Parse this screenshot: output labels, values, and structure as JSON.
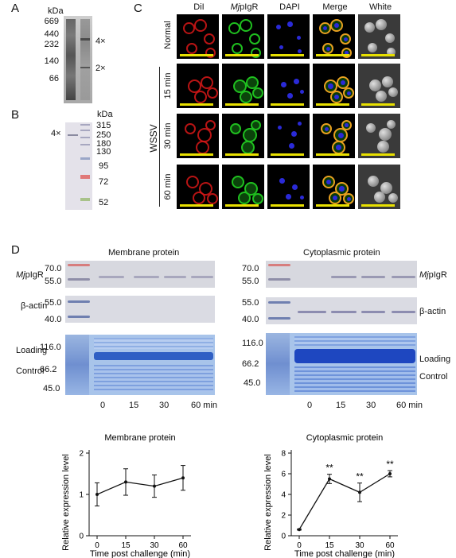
{
  "panelA": {
    "label": "A",
    "unit": "kDa",
    "markers": [
      "669",
      "440",
      "232",
      "140",
      "66"
    ],
    "bands": [
      "4×",
      "2×"
    ]
  },
  "panelB": {
    "label": "B",
    "unit": "kDa",
    "band": "4×",
    "markers": [
      "315",
      "250",
      "180",
      "130",
      "95",
      "72",
      "52"
    ]
  },
  "panelC": {
    "label": "C",
    "columns": [
      "DiI",
      "MjpIgR",
      "DAPI",
      "Merge",
      "White"
    ],
    "column_italic_prefix": "Mj",
    "rows": [
      "Normal",
      "15 min",
      "30 min",
      "60 min"
    ],
    "group_label": "WSSV",
    "colors": {
      "dil": "#d81818",
      "pigr": "#1fbf1f",
      "dapi": "#2a2ad8",
      "scalebar": "#e8e000"
    }
  },
  "panelD": {
    "label": "D",
    "membrane": {
      "title": "Membrane protein",
      "mw_top": [
        "70.0",
        "55.0"
      ],
      "mw_actin": [
        "55.0",
        "40.0"
      ],
      "mw_loading": [
        "116.0",
        "66.2",
        "45.0"
      ],
      "label_pigr": "MjpIgR",
      "label_actin": "β-actin",
      "label_loading": [
        "Loading",
        "Control"
      ],
      "timepoints": [
        "0",
        "15",
        "30",
        "60 min"
      ]
    },
    "cytoplasmic": {
      "title": "Cytoplasmic protein",
      "mw_top": [
        "70.0",
        "55.0"
      ],
      "mw_actin": [
        "55.0",
        "40.0"
      ],
      "mw_loading": [
        "116.0",
        "66.2",
        "45.0"
      ],
      "label_pigr": "MjpIgR",
      "label_actin": "β-actin",
      "label_loading": [
        "Loading",
        "Control"
      ],
      "timepoints": [
        "0",
        "15",
        "30",
        "60 min"
      ]
    }
  },
  "chart_data": [
    {
      "type": "line",
      "title": "Membrane protein",
      "xlabel": "Time post challenge (min)",
      "ylabel": "Relative expression level",
      "categories": [
        "0",
        "15",
        "30",
        "60"
      ],
      "values": [
        1.0,
        1.3,
        1.2,
        1.4
      ],
      "errors": [
        0.28,
        0.32,
        0.27,
        0.3
      ],
      "ylim": [
        0,
        2
      ],
      "yticks": [
        "0",
        "1",
        "2"
      ],
      "annotations": []
    },
    {
      "type": "line",
      "title": "Cytoplasmic protein",
      "xlabel": "Time post challenge (min)",
      "ylabel": "Relative expression level",
      "categories": [
        "0",
        "15",
        "30",
        "60"
      ],
      "values": [
        0.6,
        5.5,
        4.2,
        6.0
      ],
      "errors": [
        0.05,
        0.45,
        0.9,
        0.3
      ],
      "ylim": [
        0,
        8
      ],
      "yticks": [
        "0",
        "2",
        "4",
        "6",
        "8"
      ],
      "annotations": [
        "",
        "**",
        "**",
        "**"
      ]
    }
  ]
}
